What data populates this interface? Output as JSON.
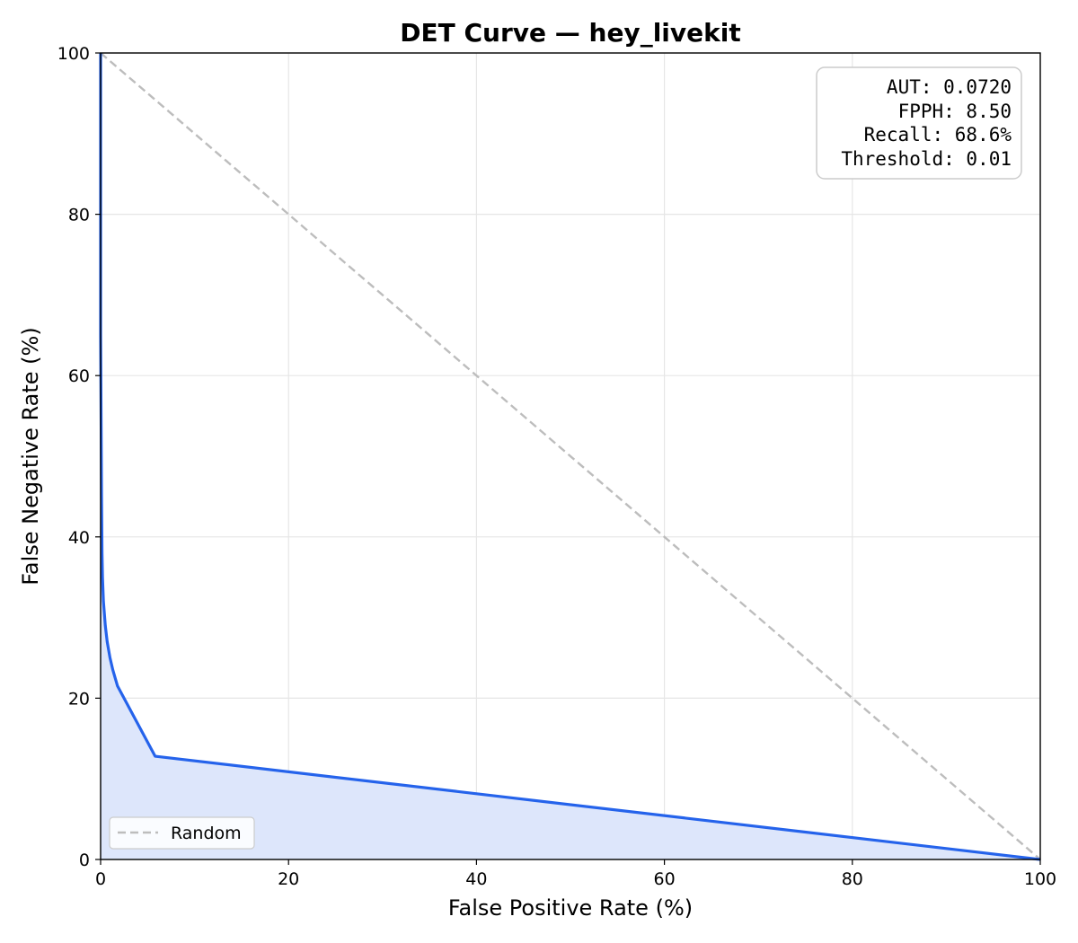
{
  "chart_data": {
    "type": "line",
    "title": "DET Curve — hey_livekit",
    "xlabel": "False Positive Rate (%)",
    "ylabel": "False Negative Rate (%)",
    "xlim": [
      0,
      100
    ],
    "ylim": [
      0,
      100
    ],
    "xticks": [
      0,
      20,
      40,
      60,
      80,
      100
    ],
    "yticks": [
      0,
      20,
      40,
      60,
      80,
      100
    ],
    "grid": true,
    "series": [
      {
        "name": "DET",
        "color": "#2563eb",
        "fill_color": "#dde6fb",
        "x": [
          0,
          0,
          0.1,
          0.15,
          0.2,
          0.3,
          0.5,
          0.7,
          1.0,
          1.3,
          1.8,
          5.8,
          100
        ],
        "y": [
          100,
          65,
          45,
          38,
          35,
          32,
          29,
          27,
          25,
          23.5,
          21.5,
          12.8,
          0
        ]
      },
      {
        "name": "Random",
        "color": "#bdbdbd",
        "dashed": true,
        "x": [
          0,
          100
        ],
        "y": [
          100,
          0
        ]
      }
    ],
    "metrics_box": {
      "lines": [
        "AUT: 0.0720",
        "FPPH: 8.50",
        "Recall: 68.6%",
        "Threshold: 0.01"
      ],
      "placement": "top-right"
    },
    "legend": {
      "placement": "bottom-left",
      "entries": [
        "Random"
      ]
    }
  }
}
